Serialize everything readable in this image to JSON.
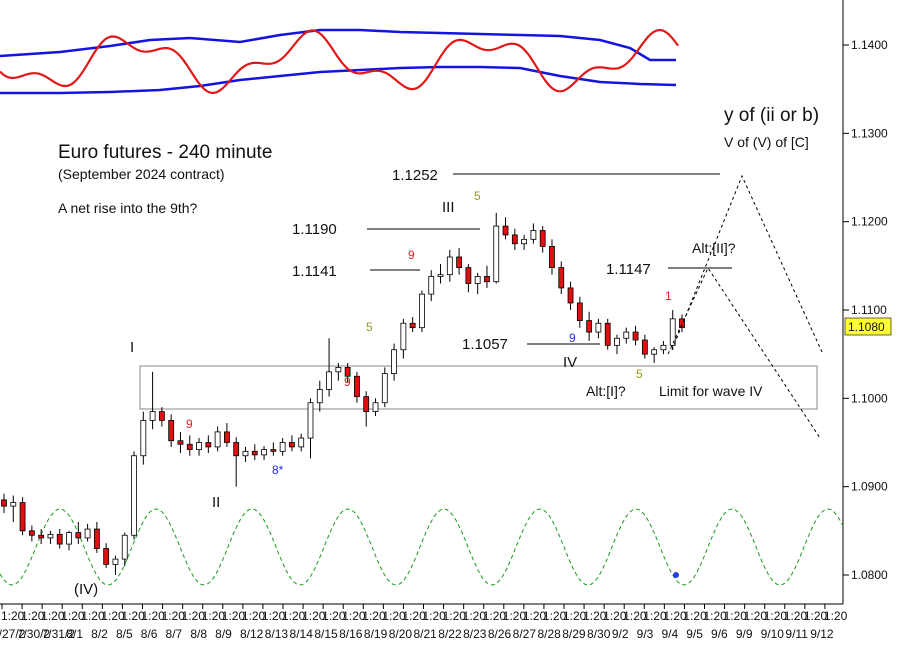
{
  "chart_data": {
    "type": "candlestick",
    "title": "Euro futures - 240 minute",
    "subtitle": "(September 2024 contract)",
    "note": "A net rise into the 9th?",
    "y_axis": {
      "ticks": [
        "1.1400",
        "1.1300",
        "1.1200",
        "1.1100",
        "1.1000",
        "1.0900",
        "1.0800"
      ],
      "tick_values": [
        1.14,
        1.13,
        1.12,
        1.11,
        1.1,
        1.09,
        1.08
      ],
      "range": [
        1.0775,
        1.1445
      ]
    },
    "x_axis": {
      "time_row": [
        "1:20",
        "1:20",
        "1:20",
        "1:20",
        "1:20",
        "1:20",
        "1:20",
        "1:20",
        "1:20",
        "1:20",
        "1:20",
        "1:20",
        "1:20",
        "1:20",
        "1:20",
        "1:20",
        "1:20",
        "1:20",
        "1:20",
        "1:20",
        "1:20",
        "1:20",
        "1:20",
        "1:20",
        "1:20",
        "1:20",
        "1:20",
        "1:20",
        "1:20",
        "1:20",
        "1:20",
        "1:20",
        "1:20",
        "1:20",
        "1:20",
        "1:20",
        "1:20",
        "1:20",
        "1:20",
        "1:20",
        "1:20",
        "1:20"
      ],
      "date_row": [
        "7/27/2",
        "7/30/2",
        "7/31/2",
        "8/1",
        "8/2",
        "8/5",
        "8/6",
        "8/7",
        "8/8",
        "8/9",
        "8/12",
        "8/13",
        "8/14",
        "8/15",
        "8/16",
        "8/19",
        "8/20",
        "8/21",
        "8/22",
        "8/23",
        "8/26",
        "8/27",
        "8/28",
        "8/29",
        "8/30",
        "9/2",
        "9/3",
        "9/4",
        "9/5",
        "9/6",
        "9/9",
        "9/10",
        "9/11",
        "9/12"
      ]
    },
    "last_price": "1.1080",
    "price_levels": [
      {
        "label": "1.1252",
        "value": 1.1252
      },
      {
        "label": "1.1190",
        "value": 1.119
      },
      {
        "label": "1.1141",
        "value": 1.1141
      },
      {
        "label": "1.1147",
        "value": 1.1147
      },
      {
        "label": "1.1057",
        "value": 1.1057
      }
    ],
    "wave_labels": {
      "w_iv_paren": "(IV)",
      "w_i": "I",
      "w_ii": "II",
      "w_iii": "III",
      "w_iv": "IV",
      "alt_i": "Alt:[I]?",
      "alt_ii": "Alt:[II]?",
      "limit": "Limit for wave IV",
      "target_1": "y of (ii or b)",
      "target_2": "V of (V) of [C]"
    },
    "count_labels": {
      "n9a": "9",
      "n8star": "8*",
      "n9b": "9",
      "n5a": "5",
      "n9c": "9",
      "n5b": "5",
      "n9d": "9",
      "n5c": "5",
      "n1": "1"
    },
    "candles": [
      [
        1.0885,
        1.0892,
        1.087,
        1.0878
      ],
      [
        1.0878,
        1.089,
        1.086,
        1.0882
      ],
      [
        1.0882,
        1.0888,
        1.0845,
        1.085
      ],
      [
        1.085,
        1.0856,
        1.0838,
        1.0845
      ],
      [
        1.0845,
        1.0852,
        1.0835,
        1.0842
      ],
      [
        1.0842,
        1.085,
        1.0835,
        1.0846
      ],
      [
        1.0846,
        1.0852,
        1.083,
        1.0835
      ],
      [
        1.0835,
        1.085,
        1.0828,
        1.0848
      ],
      [
        1.0848,
        1.086,
        1.0835,
        1.0842
      ],
      [
        1.0842,
        1.0858,
        1.0838,
        1.0852
      ],
      [
        1.0852,
        1.086,
        1.0825,
        1.083
      ],
      [
        1.083,
        1.0836,
        1.0808,
        1.0812
      ],
      [
        1.0812,
        1.0822,
        1.08,
        1.0818
      ],
      [
        1.0818,
        1.0848,
        1.081,
        1.0845
      ],
      [
        1.0845,
        1.094,
        1.084,
        1.0935
      ],
      [
        1.0935,
        1.0985,
        1.0925,
        1.0975
      ],
      [
        1.0975,
        1.103,
        1.0965,
        1.0985
      ],
      [
        1.0985,
        1.099,
        1.0968,
        1.0975
      ],
      [
        1.0975,
        1.0982,
        1.0945,
        1.0952
      ],
      [
        1.0952,
        1.0962,
        1.0938,
        1.0948
      ],
      [
        1.0948,
        1.0958,
        1.0935,
        1.0942
      ],
      [
        1.0942,
        1.0955,
        1.0935,
        1.095
      ],
      [
        1.095,
        1.0958,
        1.0938,
        1.0945
      ],
      [
        1.0945,
        1.0968,
        1.094,
        1.0962
      ],
      [
        1.0962,
        1.0972,
        1.0945,
        1.095
      ],
      [
        1.095,
        1.0956,
        1.09,
        1.0935
      ],
      [
        1.0935,
        1.0945,
        1.0928,
        1.094
      ],
      [
        1.094,
        1.0948,
        1.093,
        1.0936
      ],
      [
        1.0936,
        1.0946,
        1.093,
        1.0942
      ],
      [
        1.0942,
        1.095,
        1.0935,
        1.094
      ],
      [
        1.094,
        1.0955,
        1.0935,
        1.095
      ],
      [
        1.095,
        1.0958,
        1.094,
        1.0945
      ],
      [
        1.0945,
        1.096,
        1.094,
        1.0955
      ],
      [
        1.0955,
        1.1,
        1.0932,
        1.0995
      ],
      [
        1.0995,
        1.102,
        1.0985,
        1.101
      ],
      [
        1.101,
        1.1068,
        1.1002,
        1.103
      ],
      [
        1.103,
        1.104,
        1.102,
        1.1035
      ],
      [
        1.1035,
        1.104,
        1.1018,
        1.1025
      ],
      [
        1.1025,
        1.103,
        1.0995,
        1.1002
      ],
      [
        1.1002,
        1.1008,
        1.0968,
        1.0985
      ],
      [
        1.0985,
        1.1,
        1.098,
        1.0995
      ],
      [
        1.0995,
        1.1035,
        1.099,
        1.1028
      ],
      [
        1.1028,
        1.1062,
        1.102,
        1.1055
      ],
      [
        1.1055,
        1.109,
        1.1045,
        1.1085
      ],
      [
        1.1085,
        1.1092,
        1.1075,
        1.108
      ],
      [
        1.108,
        1.1122,
        1.1075,
        1.1118
      ],
      [
        1.1118,
        1.1145,
        1.111,
        1.1138
      ],
      [
        1.1138,
        1.1152,
        1.113,
        1.114
      ],
      [
        1.114,
        1.1168,
        1.1132,
        1.116
      ],
      [
        1.116,
        1.117,
        1.114,
        1.1148
      ],
      [
        1.1148,
        1.1152,
        1.112,
        1.113
      ],
      [
        1.113,
        1.1142,
        1.1118,
        1.1138
      ],
      [
        1.1138,
        1.115,
        1.1125,
        1.1132
      ],
      [
        1.1132,
        1.121,
        1.113,
        1.1195
      ],
      [
        1.1195,
        1.1205,
        1.118,
        1.1185
      ],
      [
        1.1185,
        1.1192,
        1.1168,
        1.1175
      ],
      [
        1.1175,
        1.1185,
        1.1168,
        1.118
      ],
      [
        1.118,
        1.1198,
        1.1175,
        1.119
      ],
      [
        1.119,
        1.1195,
        1.1165,
        1.1172
      ],
      [
        1.1172,
        1.118,
        1.114,
        1.1148
      ],
      [
        1.1148,
        1.1155,
        1.1118,
        1.1125
      ],
      [
        1.1125,
        1.1132,
        1.11,
        1.1108
      ],
      [
        1.1108,
        1.1115,
        1.108,
        1.1088
      ],
      [
        1.1088,
        1.1098,
        1.1065,
        1.1075
      ],
      [
        1.1075,
        1.109,
        1.1068,
        1.1085
      ],
      [
        1.1085,
        1.109,
        1.1055,
        1.106
      ],
      [
        1.106,
        1.1072,
        1.105,
        1.1068
      ],
      [
        1.1068,
        1.108,
        1.1062,
        1.1075
      ],
      [
        1.1075,
        1.1082,
        1.106,
        1.1066
      ],
      [
        1.1066,
        1.1072,
        1.1045,
        1.105
      ],
      [
        1.105,
        1.1058,
        1.104,
        1.1055
      ],
      [
        1.1055,
        1.1065,
        1.105,
        1.106
      ],
      [
        1.106,
        1.11,
        1.1055,
        1.109
      ],
      [
        1.109,
        1.1095,
        1.1075,
        1.108
      ]
    ],
    "projection": {
      "main_path": [
        [
          1.106,
          0
        ],
        [
          1.1252,
          13
        ],
        [
          1.105,
          24
        ]
      ],
      "alt_path": [
        [
          1.106,
          0
        ],
        [
          1.1147,
          6
        ],
        [
          1.096,
          24
        ]
      ]
    },
    "oscillator": {
      "red_line": "momentum",
      "blue_bands": "envelope",
      "green_cycle": "cycle"
    }
  }
}
